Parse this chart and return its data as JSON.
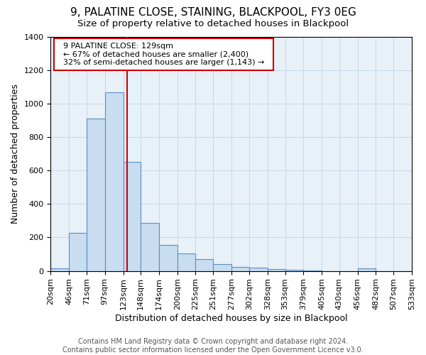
{
  "title1": "9, PALATINE CLOSE, STAINING, BLACKPOOL, FY3 0EG",
  "title2": "Size of property relative to detached houses in Blackpool",
  "xlabel": "Distribution of detached houses by size in Blackpool",
  "ylabel": "Number of detached properties",
  "footnote1": "Contains HM Land Registry data © Crown copyright and database right 2024.",
  "footnote2": "Contains public sector information licensed under the Open Government Licence v3.0.",
  "annotation_line1": "9 PALATINE CLOSE: 129sqm",
  "annotation_line2": "← 67% of detached houses are smaller (2,400)",
  "annotation_line3": "32% of semi-detached houses are larger (1,143) →",
  "bin_edges": [
    20,
    46,
    71,
    97,
    123,
    148,
    174,
    200,
    225,
    251,
    277,
    302,
    328,
    353,
    379,
    405,
    430,
    456,
    482,
    507,
    533
  ],
  "bar_heights": [
    15,
    228,
    910,
    1068,
    650,
    288,
    157,
    105,
    70,
    42,
    25,
    20,
    10,
    5,
    3,
    0,
    0,
    15,
    0,
    0
  ],
  "bar_color": "#c8ddf0",
  "bar_edge_color": "#5b8dc8",
  "vline_x": 129,
  "vline_color": "#cc0000",
  "ylim": [
    0,
    1400
  ],
  "xlim": [
    20,
    533
  ],
  "grid_color": "#c8d8e8",
  "background_color": "#ffffff",
  "plot_bg_color": "#e8f0f8",
  "annotation_box_color": "#cc0000",
  "title_fontsize": 11,
  "subtitle_fontsize": 9.5,
  "tick_fontsize": 8,
  "ylabel_fontsize": 9,
  "xlabel_fontsize": 9,
  "footnote_fontsize": 7
}
